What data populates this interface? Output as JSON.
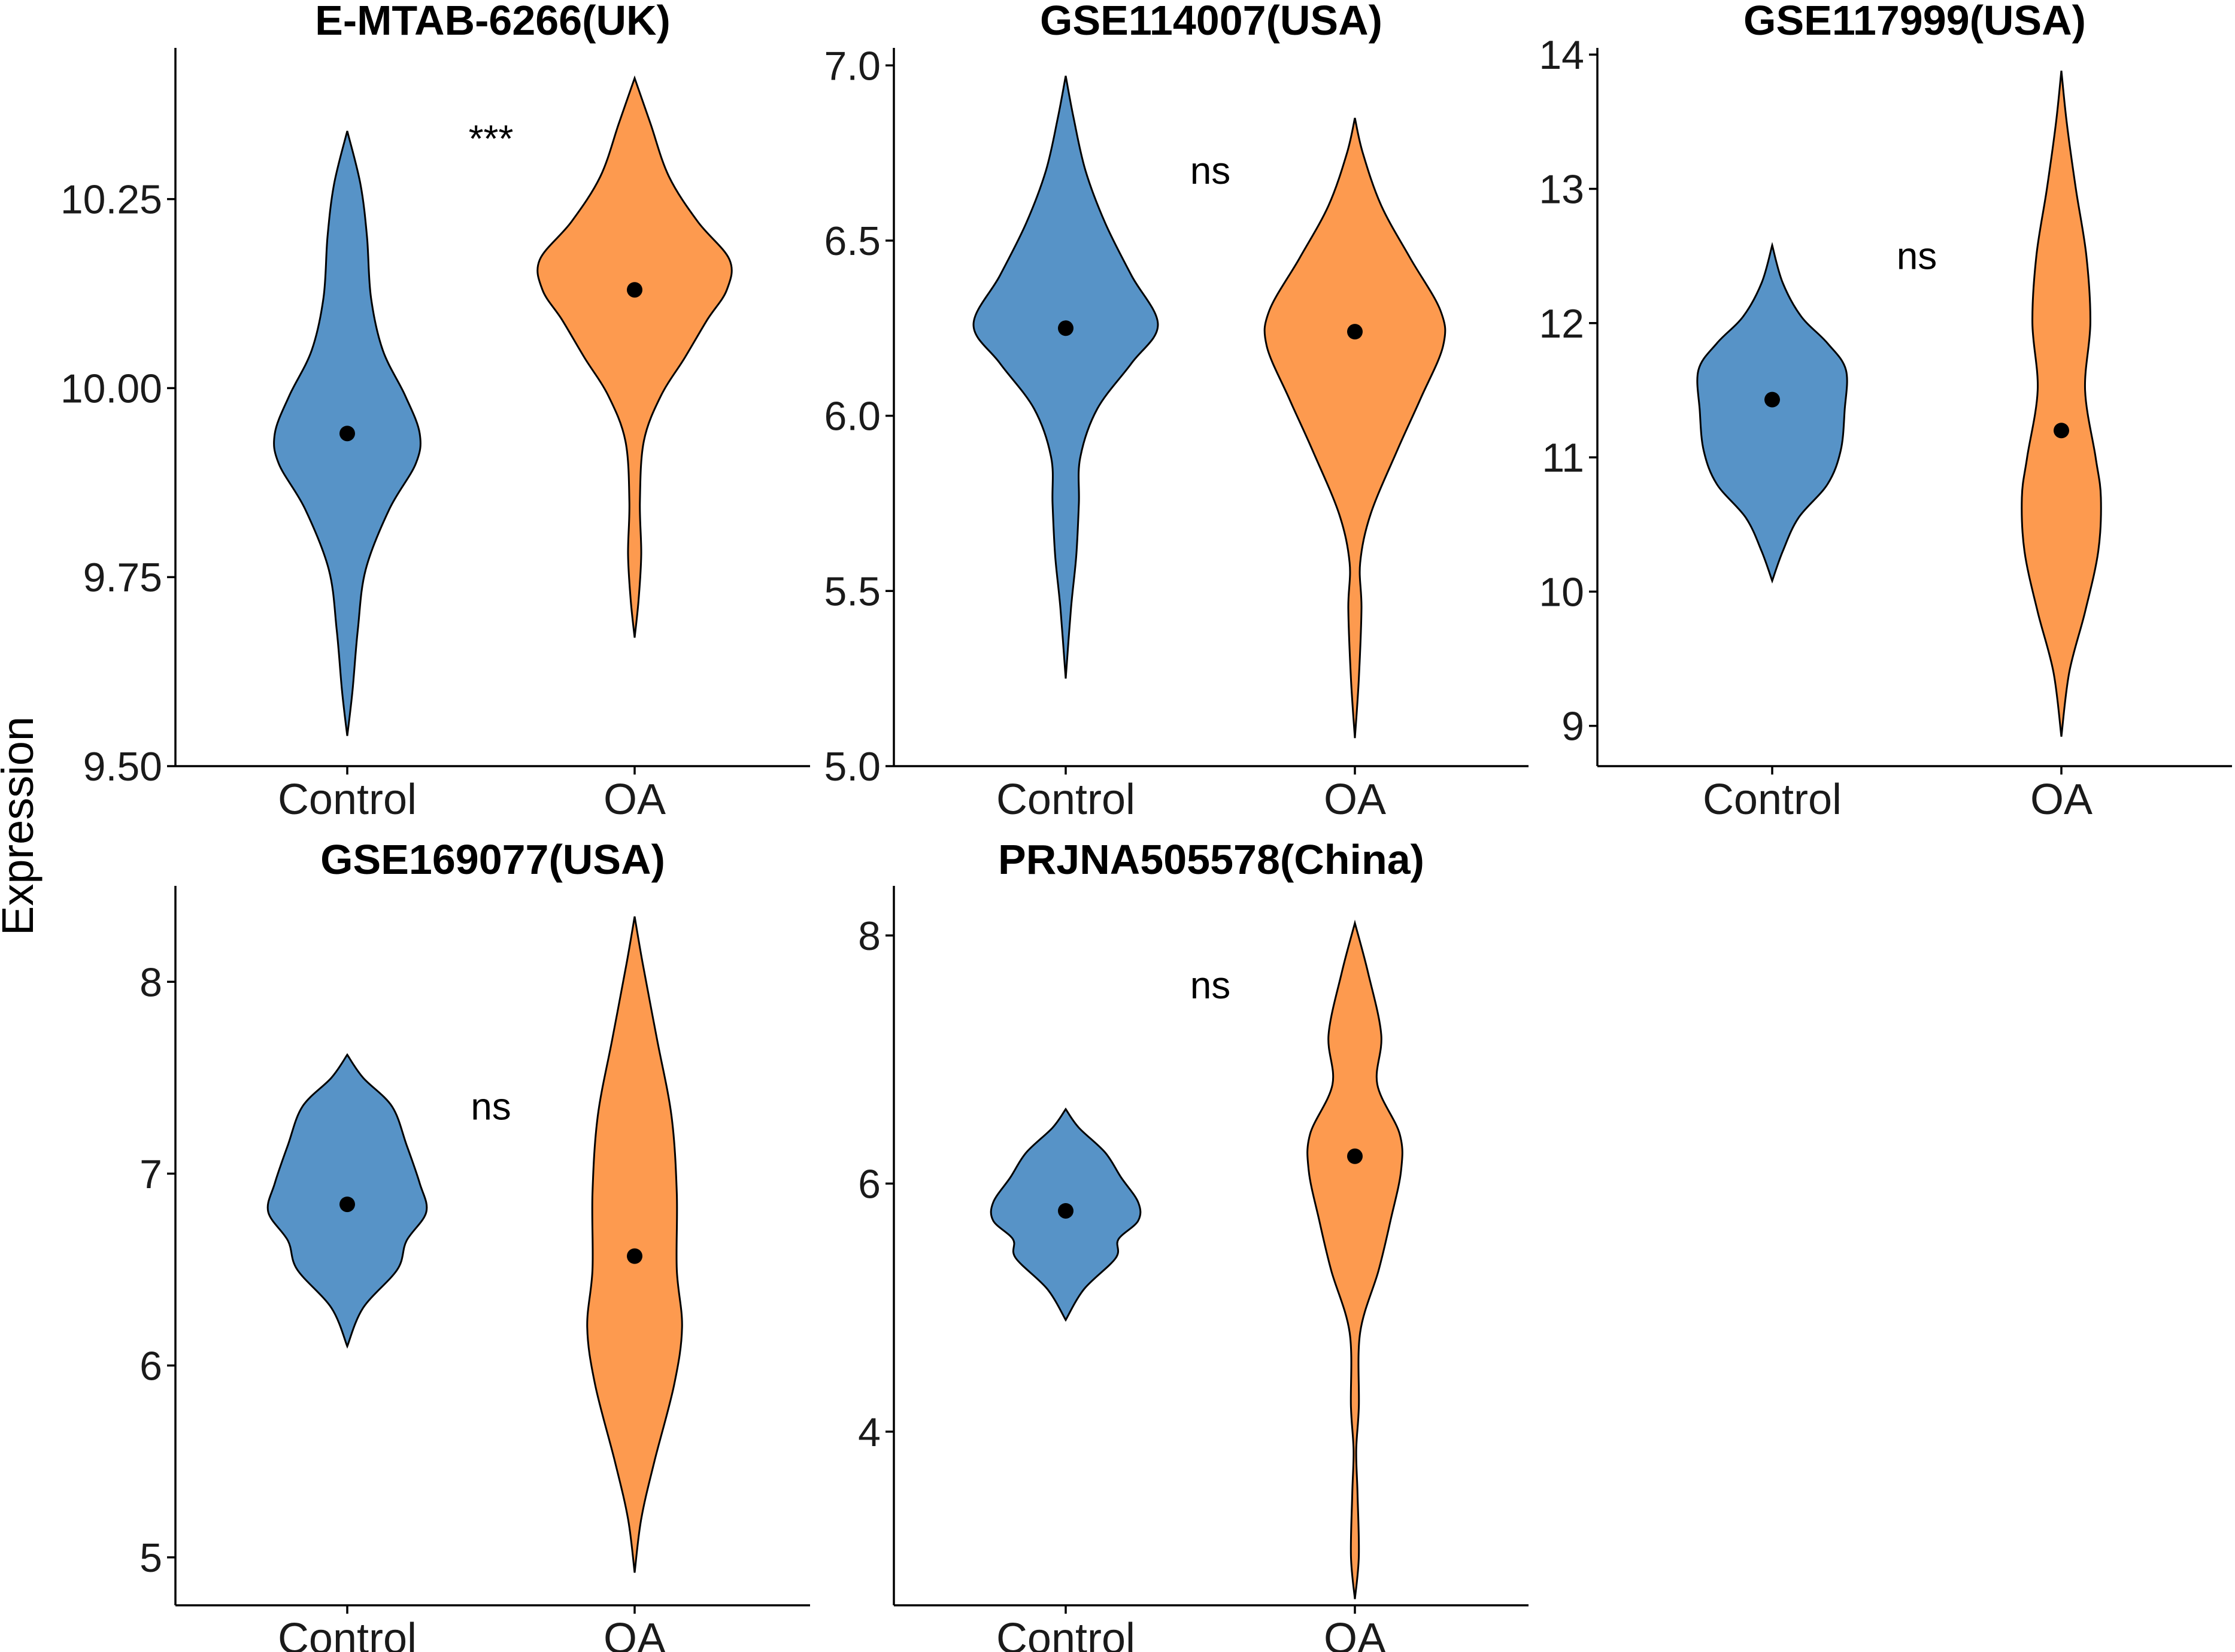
{
  "figure": {
    "y_axis_title": "Expression",
    "colors": {
      "control": "#5793c7",
      "oa": "#fd9a4f"
    }
  },
  "chart_data": [
    {
      "type": "violin",
      "title": "E-MTAB-6266(UK)",
      "categories": [
        "Control",
        "OA"
      ],
      "ylim": [
        9.5,
        10.45
      ],
      "yticks": [
        9.5,
        9.75,
        10.0,
        10.25
      ],
      "ytick_labels": [
        "9.50",
        "9.75",
        "10.00",
        "10.25"
      ],
      "significance": "***",
      "significance_y": 10.33,
      "series": [
        {
          "name": "Control",
          "median": 9.94,
          "profile": [
            [
              9.54,
              0.0
            ],
            [
              9.6,
              0.04
            ],
            [
              9.68,
              0.08
            ],
            [
              9.76,
              0.14
            ],
            [
              9.84,
              0.32
            ],
            [
              9.9,
              0.52
            ],
            [
              9.94,
              0.55
            ],
            [
              9.99,
              0.44
            ],
            [
              10.05,
              0.27
            ],
            [
              10.12,
              0.18
            ],
            [
              10.2,
              0.15
            ],
            [
              10.27,
              0.1
            ],
            [
              10.34,
              0.0
            ]
          ]
        },
        {
          "name": "OA",
          "median": 10.13,
          "profile": [
            [
              9.67,
              0.0
            ],
            [
              9.72,
              0.03
            ],
            [
              9.78,
              0.05
            ],
            [
              9.85,
              0.04
            ],
            [
              9.93,
              0.07
            ],
            [
              9.99,
              0.2
            ],
            [
              10.04,
              0.38
            ],
            [
              10.09,
              0.55
            ],
            [
              10.13,
              0.7
            ],
            [
              10.17,
              0.72
            ],
            [
              10.22,
              0.48
            ],
            [
              10.28,
              0.26
            ],
            [
              10.35,
              0.12
            ],
            [
              10.41,
              0.0
            ]
          ]
        }
      ]
    },
    {
      "type": "violin",
      "title": "GSE114007(USA)",
      "categories": [
        "Control",
        "OA"
      ],
      "ylim": [
        5.0,
        7.05
      ],
      "yticks": [
        5.0,
        5.5,
        6.0,
        6.5,
        7.0
      ],
      "ytick_labels": [
        "5.0",
        "5.5",
        "6.0",
        "6.5",
        "7.0"
      ],
      "significance": "ns",
      "significance_y": 6.7,
      "series": [
        {
          "name": "Control",
          "median": 6.25,
          "profile": [
            [
              5.25,
              0.0
            ],
            [
              5.45,
              0.04
            ],
            [
              5.6,
              0.08
            ],
            [
              5.75,
              0.1
            ],
            [
              5.88,
              0.11
            ],
            [
              6.02,
              0.24
            ],
            [
              6.15,
              0.5
            ],
            [
              6.26,
              0.7
            ],
            [
              6.4,
              0.5
            ],
            [
              6.55,
              0.3
            ],
            [
              6.7,
              0.15
            ],
            [
              6.85,
              0.06
            ],
            [
              6.97,
              0.0
            ]
          ]
        },
        {
          "name": "OA",
          "median": 6.24,
          "profile": [
            [
              5.08,
              0.0
            ],
            [
              5.25,
              0.03
            ],
            [
              5.45,
              0.05
            ],
            [
              5.58,
              0.04
            ],
            [
              5.72,
              0.12
            ],
            [
              5.9,
              0.32
            ],
            [
              6.05,
              0.5
            ],
            [
              6.2,
              0.67
            ],
            [
              6.3,
              0.65
            ],
            [
              6.45,
              0.42
            ],
            [
              6.6,
              0.2
            ],
            [
              6.75,
              0.06
            ],
            [
              6.85,
              0.0
            ]
          ]
        }
      ]
    },
    {
      "type": "violin",
      "title": "GSE117999(USA)",
      "categories": [
        "Control",
        "OA"
      ],
      "ylim": [
        8.7,
        14.05
      ],
      "yticks": [
        9,
        10,
        11,
        12,
        13,
        14
      ],
      "ytick_labels": [
        "9",
        "10",
        "11",
        "12",
        "13",
        "14"
      ],
      "significance": "ns",
      "significance_y": 12.5,
      "series": [
        {
          "name": "Control",
          "median": 11.43,
          "profile": [
            [
              10.08,
              0.0
            ],
            [
              10.3,
              0.08
            ],
            [
              10.55,
              0.2
            ],
            [
              10.8,
              0.42
            ],
            [
              11.05,
              0.52
            ],
            [
              11.35,
              0.55
            ],
            [
              11.65,
              0.56
            ],
            [
              11.85,
              0.42
            ],
            [
              12.05,
              0.22
            ],
            [
              12.3,
              0.08
            ],
            [
              12.58,
              0.0
            ]
          ]
        },
        {
          "name": "OA",
          "median": 11.2,
          "profile": [
            [
              8.92,
              0.0
            ],
            [
              9.4,
              0.06
            ],
            [
              9.85,
              0.18
            ],
            [
              10.3,
              0.28
            ],
            [
              10.7,
              0.3
            ],
            [
              11.0,
              0.26
            ],
            [
              11.5,
              0.18
            ],
            [
              12.0,
              0.22
            ],
            [
              12.5,
              0.19
            ],
            [
              13.0,
              0.11
            ],
            [
              13.5,
              0.04
            ],
            [
              13.88,
              0.0
            ]
          ]
        }
      ]
    },
    {
      "type": "violin",
      "title": "GSE169077(USA)",
      "categories": [
        "Control",
        "OA"
      ],
      "ylim": [
        4.75,
        8.5
      ],
      "yticks": [
        5,
        6,
        7,
        8
      ],
      "ytick_labels": [
        "5",
        "6",
        "7",
        "8"
      ],
      "significance": "ns",
      "significance_y": 7.35,
      "series": [
        {
          "name": "Control",
          "median": 6.84,
          "profile": [
            [
              6.1,
              0.0
            ],
            [
              6.3,
              0.12
            ],
            [
              6.5,
              0.38
            ],
            [
              6.65,
              0.45
            ],
            [
              6.8,
              0.6
            ],
            [
              6.95,
              0.55
            ],
            [
              7.15,
              0.45
            ],
            [
              7.35,
              0.34
            ],
            [
              7.5,
              0.12
            ],
            [
              7.62,
              0.0
            ]
          ]
        },
        {
          "name": "OA",
          "median": 6.57,
          "profile": [
            [
              4.92,
              0.0
            ],
            [
              5.2,
              0.05
            ],
            [
              5.5,
              0.15
            ],
            [
              5.9,
              0.3
            ],
            [
              6.2,
              0.36
            ],
            [
              6.5,
              0.32
            ],
            [
              6.9,
              0.32
            ],
            [
              7.3,
              0.28
            ],
            [
              7.7,
              0.17
            ],
            [
              8.1,
              0.06
            ],
            [
              8.34,
              0.0
            ]
          ]
        }
      ]
    },
    {
      "type": "violin",
      "title": "PRJNA505578(China)",
      "categories": [
        "Control",
        "OA"
      ],
      "ylim": [
        2.6,
        8.4
      ],
      "yticks": [
        4,
        6,
        8
      ],
      "ytick_labels": [
        "4",
        "6",
        "8"
      ],
      "significance": "ns",
      "significance_y": 7.6,
      "series": [
        {
          "name": "Control",
          "median": 5.78,
          "profile": [
            [
              4.9,
              0.0
            ],
            [
              5.15,
              0.14
            ],
            [
              5.4,
              0.38
            ],
            [
              5.55,
              0.4
            ],
            [
              5.7,
              0.55
            ],
            [
              5.85,
              0.55
            ],
            [
              6.05,
              0.42
            ],
            [
              6.25,
              0.3
            ],
            [
              6.45,
              0.1
            ],
            [
              6.6,
              0.0
            ]
          ]
        },
        {
          "name": "OA",
          "median": 6.22,
          "profile": [
            [
              2.65,
              0.0
            ],
            [
              3.0,
              0.03
            ],
            [
              3.5,
              0.02
            ],
            [
              3.85,
              0.01
            ],
            [
              4.2,
              0.03
            ],
            [
              4.8,
              0.04
            ],
            [
              5.3,
              0.18
            ],
            [
              5.7,
              0.27
            ],
            [
              6.1,
              0.35
            ],
            [
              6.4,
              0.34
            ],
            [
              6.8,
              0.17
            ],
            [
              7.2,
              0.2
            ],
            [
              7.7,
              0.1
            ],
            [
              8.1,
              0.0
            ]
          ]
        }
      ]
    }
  ]
}
